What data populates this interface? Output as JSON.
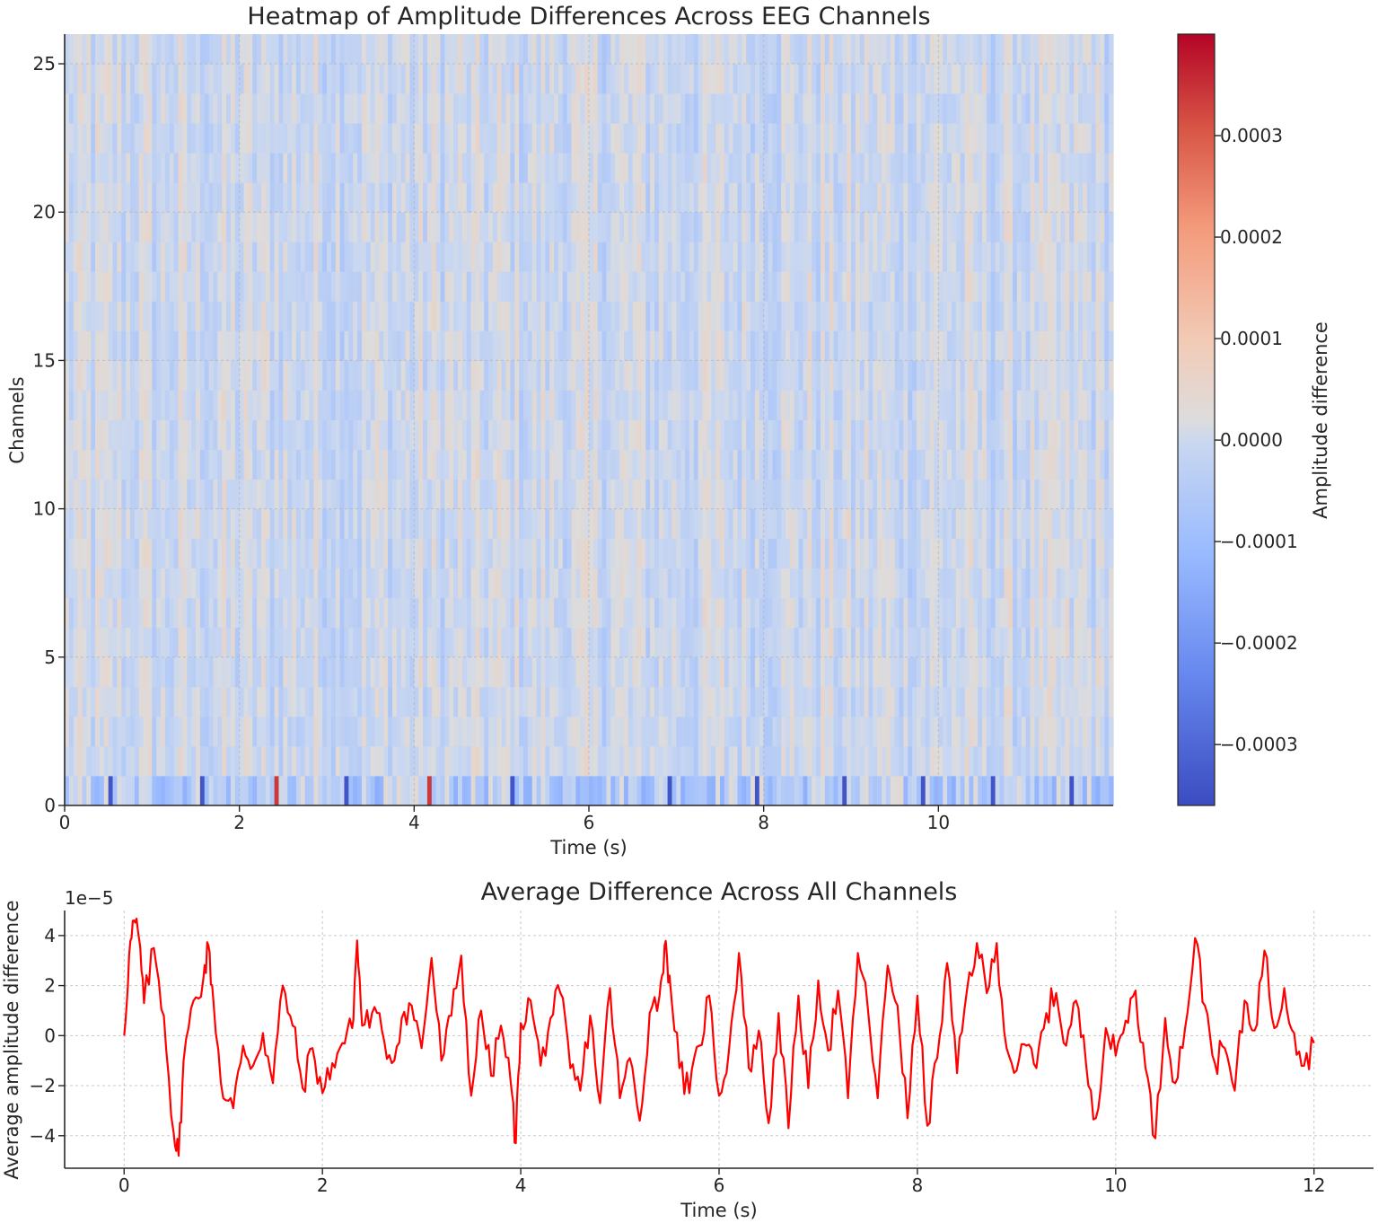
{
  "colors": {
    "line": "#ff0000",
    "cmap_low": "#3b4cc0",
    "cmap_mid": "#dddddd",
    "cmap_high": "#b40426"
  },
  "chart_data": [
    {
      "type": "heatmap",
      "title": "Heatmap of Amplitude Differences Across EEG Channels",
      "xlabel": "Time (s)",
      "ylabel": "Channels",
      "xlim": [
        0,
        12
      ],
      "ylim": [
        0,
        26
      ],
      "xticks": [
        0,
        2,
        4,
        6,
        8,
        10
      ],
      "yticks": [
        0,
        5,
        10,
        15,
        20,
        25
      ],
      "xtick_labels": [
        "0",
        "2",
        "4",
        "6",
        "8",
        "10"
      ],
      "ytick_labels": [
        "0",
        "5",
        "10",
        "15",
        "20",
        "25"
      ],
      "grid": true,
      "colorbar": {
        "label": "Amplitude difference",
        "colormap": "coolwarm",
        "vmin": -0.00036,
        "vmax": 0.0004,
        "ticks": [
          -0.0003,
          -0.0002,
          -0.0001,
          0.0,
          0.0001,
          0.0002,
          0.0003
        ],
        "tick_labels": [
          "−0.0003",
          "−0.0002",
          "−0.0001",
          "0.0000",
          "0.0001",
          "0.0002",
          "0.0003"
        ]
      },
      "channels": 26,
      "channel_0_spike_times": [
        0.5,
        1.55,
        2.4,
        3.2,
        4.15,
        5.1,
        6.9,
        7.9,
        8.9,
        9.8,
        10.6,
        11.5
      ]
    },
    {
      "type": "line",
      "title": "Average Difference Across All Channels",
      "xlabel": "Time (s)",
      "ylabel": "Average amplitude difference",
      "offset_text": "1e−5",
      "xlim": [
        -0.6,
        12.6
      ],
      "ylim": [
        -5.3,
        5.0
      ],
      "xticks": [
        0,
        2,
        4,
        6,
        8,
        10,
        12
      ],
      "yticks": [
        -4,
        -2,
        0,
        2,
        4
      ],
      "xtick_labels": [
        "0",
        "2",
        "4",
        "6",
        "8",
        "10",
        "12"
      ],
      "ytick_labels": [
        "−4",
        "−2",
        "0",
        "2",
        "4"
      ],
      "grid": true,
      "series": [
        {
          "x": [
            0,
            0.05,
            0.1,
            0.15,
            0.2,
            0.3,
            0.4,
            0.5,
            0.55,
            0.6,
            0.7,
            0.8,
            0.85,
            0.9,
            1.0,
            1.1,
            1.2,
            1.3,
            1.4,
            1.5,
            1.6,
            1.7,
            1.8,
            1.9,
            2.0,
            2.1,
            2.2,
            2.3,
            2.35,
            2.4,
            2.5,
            2.6,
            2.7,
            2.8,
            2.9,
            3.0,
            3.1,
            3.2,
            3.3,
            3.4,
            3.5,
            3.6,
            3.7,
            3.8,
            3.9,
            3.95,
            4.0,
            4.1,
            4.2,
            4.3,
            4.4,
            4.5,
            4.6,
            4.7,
            4.8,
            4.9,
            5.0,
            5.1,
            5.2,
            5.3,
            5.4,
            5.45,
            5.5,
            5.6,
            5.7,
            5.8,
            5.9,
            6.0,
            6.1,
            6.2,
            6.3,
            6.4,
            6.5,
            6.6,
            6.7,
            6.8,
            6.9,
            7.0,
            7.1,
            7.2,
            7.3,
            7.4,
            7.5,
            7.6,
            7.7,
            7.8,
            7.9,
            8.0,
            8.1,
            8.2,
            8.3,
            8.4,
            8.5,
            8.6,
            8.7,
            8.8,
            8.9,
            9.0,
            9.1,
            9.2,
            9.3,
            9.4,
            9.5,
            9.6,
            9.7,
            9.8,
            9.9,
            10.0,
            10.1,
            10.2,
            10.3,
            10.4,
            10.5,
            10.6,
            10.7,
            10.8,
            10.9,
            11.0,
            11.1,
            11.2,
            11.3,
            11.4,
            11.5,
            11.6,
            11.7,
            11.8,
            11.9,
            12.0
          ],
          "y": [
            0,
            3.2,
            4.6,
            3.9,
            1.3,
            3.5,
            0.8,
            -3.9,
            -4.8,
            -1.0,
            1.4,
            2.3,
            3.6,
            1.4,
            -2.5,
            -2.9,
            -0.4,
            -1.2,
            0.1,
            -1.9,
            2.0,
            0.4,
            -2.1,
            -0.5,
            -2.3,
            -1.1,
            -0.3,
            0.3,
            3.8,
            0.4,
            0.9,
            0.2,
            -1.1,
            0.7,
            1.2,
            -0.5,
            3.1,
            -1.0,
            0.8,
            3.2,
            -2.4,
            1.0,
            -1.6,
            0.4,
            -1.9,
            -4.3,
            0.5,
            1.4,
            -1.2,
            0.7,
            1.7,
            -1.3,
            -2.2,
            0.8,
            -2.7,
            1.9,
            -2.5,
            -0.9,
            -3.4,
            0.9,
            1.6,
            3.6,
            2.4,
            -1.3,
            -2.3,
            -0.4,
            1.6,
            -2.4,
            -0.6,
            3.3,
            -1.3,
            0.2,
            -3.5,
            0.9,
            -3.7,
            1.6,
            -2.1,
            2.2,
            -0.6,
            1.8,
            -2.5,
            3.3,
            1.1,
            -2.5,
            2.8,
            1.2,
            -3.3,
            1.6,
            -3.6,
            -0.9,
            2.9,
            -1.5,
            1.8,
            3.7,
            1.7,
            3.7,
            -0.5,
            -1.4,
            -0.4,
            -1.3,
            0.9,
            1.7,
            -0.4,
            1.4,
            -1.1,
            -3.3,
            0.3,
            -0.8,
            0.6,
            1.8,
            -1.3,
            -4.1,
            0.7,
            -1.9,
            0.3,
            3.9,
            1.2,
            -1.1,
            -0.5,
            -2.2,
            1.4,
            0.2,
            3.4,
            0.3,
            1.9,
            0.1,
            -1.2,
            -0.3
          ]
        }
      ]
    }
  ]
}
